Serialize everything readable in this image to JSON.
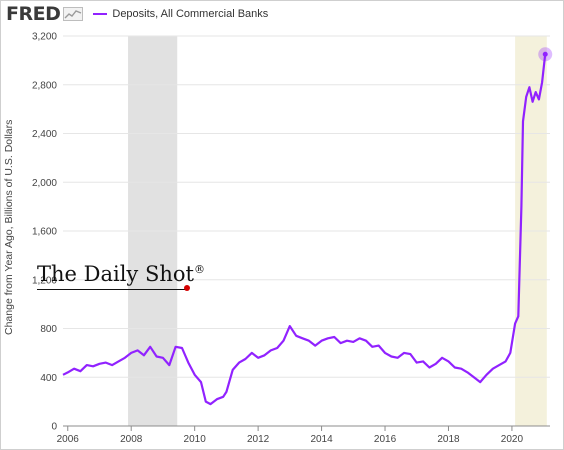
{
  "header": {
    "logo": "FRED",
    "spark_icon": "line-chart-icon",
    "legend_label": "Deposits, All Commercial Banks"
  },
  "watermark": {
    "text": "The Daily Shot",
    "mark": "®"
  },
  "colors": {
    "series": "#9122ff",
    "recession": "#e1e1e1",
    "highlight": "#f4f1dc",
    "grid": "#e6e6e6",
    "axis_text": "#444444"
  },
  "chart_data": {
    "type": "line",
    "title": "",
    "xlabel": "",
    "ylabel": "Change from Year Ago, Billions of U.S. Dollars",
    "xlim": [
      2005.85,
      2021.2
    ],
    "ylim": [
      0,
      3200
    ],
    "x_ticks": [
      2006,
      2008,
      2010,
      2012,
      2014,
      2016,
      2018,
      2020
    ],
    "x_tick_labels": [
      "2006",
      "2008",
      "2010",
      "2012",
      "2014",
      "2016",
      "2018",
      "2020"
    ],
    "y_ticks": [
      0,
      400,
      800,
      1200,
      1600,
      2000,
      2400,
      2800,
      3200
    ],
    "y_tick_labels": [
      "0",
      "400",
      "800",
      "1,200",
      "1,600",
      "2,000",
      "2,400",
      "2,800",
      "3,200"
    ],
    "grid": "horizontal",
    "recession_bands": [
      [
        2007.9,
        2009.45
      ]
    ],
    "highlight_bands": [
      [
        2020.1,
        2021.1
      ]
    ],
    "series": [
      {
        "name": "Deposits, All Commercial Banks",
        "x": [
          2005.85,
          2006.0,
          2006.2,
          2006.4,
          2006.6,
          2006.8,
          2007.0,
          2007.2,
          2007.4,
          2007.6,
          2007.8,
          2008.0,
          2008.2,
          2008.4,
          2008.6,
          2008.8,
          2009.0,
          2009.2,
          2009.4,
          2009.6,
          2009.8,
          2010.0,
          2010.2,
          2010.35,
          2010.5,
          2010.7,
          2010.9,
          2011.0,
          2011.2,
          2011.4,
          2011.6,
          2011.8,
          2012.0,
          2012.2,
          2012.4,
          2012.6,
          2012.8,
          2013.0,
          2013.2,
          2013.4,
          2013.6,
          2013.8,
          2014.0,
          2014.2,
          2014.4,
          2014.6,
          2014.8,
          2015.0,
          2015.2,
          2015.4,
          2015.6,
          2015.8,
          2016.0,
          2016.2,
          2016.4,
          2016.6,
          2016.8,
          2017.0,
          2017.2,
          2017.4,
          2017.6,
          2017.8,
          2018.0,
          2018.2,
          2018.4,
          2018.6,
          2018.8,
          2019.0,
          2019.2,
          2019.4,
          2019.6,
          2019.8,
          2019.95,
          2020.1,
          2020.2,
          2020.3,
          2020.35,
          2020.45,
          2020.55,
          2020.65,
          2020.75,
          2020.85,
          2020.95,
          2021.05
        ],
        "values": [
          420,
          440,
          470,
          450,
          500,
          490,
          510,
          520,
          500,
          530,
          560,
          600,
          620,
          580,
          650,
          570,
          560,
          500,
          650,
          640,
          520,
          420,
          360,
          200,
          180,
          220,
          240,
          280,
          460,
          520,
          550,
          600,
          560,
          580,
          620,
          640,
          700,
          820,
          740,
          720,
          700,
          660,
          700,
          720,
          730,
          680,
          700,
          690,
          720,
          700,
          650,
          660,
          600,
          570,
          560,
          600,
          590,
          520,
          530,
          480,
          510,
          560,
          530,
          480,
          470,
          440,
          400,
          360,
          420,
          470,
          500,
          530,
          600,
          840,
          900,
          1800,
          2500,
          2700,
          2780,
          2660,
          2740,
          2680,
          2820,
          3050
        ]
      }
    ]
  }
}
